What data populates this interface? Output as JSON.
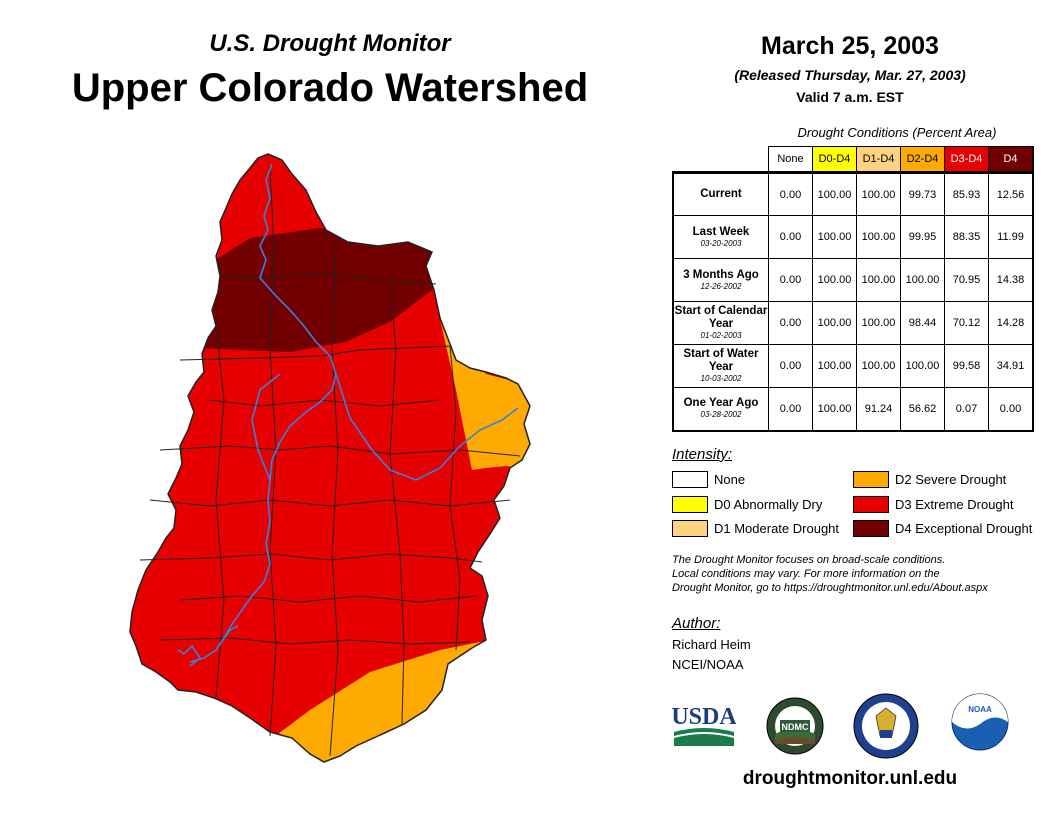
{
  "header": {
    "subtitle": "U.S. Drought Monitor",
    "title": "Upper Colorado Watershed",
    "date": "March 25, 2003",
    "released": "(Released Thursday, Mar. 27, 2003)",
    "valid": "Valid 7 a.m. EST"
  },
  "table": {
    "caption": "Drought Conditions (Percent Area)",
    "columns": [
      {
        "label": "None",
        "bg": "#ffffff",
        "fg": "#000000"
      },
      {
        "label": "D0-D4",
        "bg": "#ffff00",
        "fg": "#000000"
      },
      {
        "label": "D1-D4",
        "bg": "#fcd37f",
        "fg": "#000000"
      },
      {
        "label": "D2-D4",
        "bg": "#ffaa00",
        "fg": "#000000"
      },
      {
        "label": "D3-D4",
        "bg": "#e60000",
        "fg": "#ffffff"
      },
      {
        "label": "D4",
        "bg": "#730000",
        "fg": "#ffffff"
      }
    ],
    "rows": [
      {
        "label": "Current",
        "date": "",
        "values": [
          "0.00",
          "100.00",
          "100.00",
          "99.73",
          "85.93",
          "12.56"
        ]
      },
      {
        "label": "Last Week",
        "date": "03-20-2003",
        "values": [
          "0.00",
          "100.00",
          "100.00",
          "99.95",
          "88.35",
          "11.99"
        ]
      },
      {
        "label": "3 Months Ago",
        "date": "12-26-2002",
        "values": [
          "0.00",
          "100.00",
          "100.00",
          "100.00",
          "70.95",
          "14.38"
        ]
      },
      {
        "label": "Start of Calendar Year",
        "date": "01-02-2003",
        "values": [
          "0.00",
          "100.00",
          "100.00",
          "98.44",
          "70.12",
          "14.28"
        ]
      },
      {
        "label": "Start of Water Year",
        "date": "10-03-2002",
        "values": [
          "0.00",
          "100.00",
          "100.00",
          "100.00",
          "99.58",
          "34.91"
        ]
      },
      {
        "label": "One Year Ago",
        "date": "03-28-2002",
        "values": [
          "0.00",
          "100.00",
          "91.24",
          "56.62",
          "0.07",
          "0.00"
        ]
      }
    ]
  },
  "legend": {
    "title": "Intensity:",
    "items": [
      {
        "label": "None",
        "color": "#ffffff"
      },
      {
        "label": "D0 Abnormally Dry",
        "color": "#ffff00"
      },
      {
        "label": "D1 Moderate Drought",
        "color": "#fcd37f"
      },
      {
        "label": "D2 Severe Drought",
        "color": "#ffaa00"
      },
      {
        "label": "D3 Extreme Drought",
        "color": "#e60000"
      },
      {
        "label": "D4 Exceptional Drought",
        "color": "#730000"
      }
    ]
  },
  "note": {
    "line1": "The Drought Monitor focuses on broad-scale conditions.",
    "line2": "Local conditions may vary. For more information on the",
    "line3": "Drought Monitor, go to https://droughtmonitor.unl.edu/About.aspx"
  },
  "author": {
    "title": "Author:",
    "name": "Richard Heim",
    "org": "NCEI/NOAA"
  },
  "logos": {
    "usda": "USDA",
    "ndmc": "NDMC",
    "noaa": "NOAA"
  },
  "footer": {
    "url": "droughtmonitor.unl.edu"
  },
  "colors": {
    "river": "#3a7fe0",
    "boundary": "#222222"
  }
}
